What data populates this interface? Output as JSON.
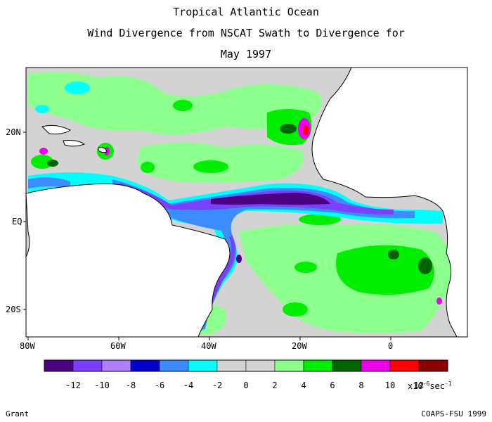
{
  "title": {
    "line1": "Tropical Atlantic Ocean",
    "line2": "Wind Divergence from NSCAT Swath to Divergence for",
    "line3": "May 1997"
  },
  "map": {
    "lon_range": [
      -80,
      15
    ],
    "lat_range": [
      -30,
      30
    ],
    "lat_labels": [
      "20N",
      "EQ",
      "20S"
    ],
    "lon_labels": [
      "80W",
      "60W",
      "40W",
      "20W",
      "0"
    ],
    "land_color": "#ffffff",
    "background_color": "#d3d3d3"
  },
  "colorbar": {
    "colors": [
      "#4b0082",
      "#7b3fff",
      "#b07fff",
      "#0000cd",
      "#3c8cff",
      "#00ffff",
      "#d3d3d3",
      "#d3d3d3",
      "#8cff8c",
      "#00ee00",
      "#006400",
      "#ee00ee",
      "#ff0000",
      "#8b0000"
    ],
    "labels": [
      "-12",
      "-10",
      "-8",
      "-6",
      "-4",
      "-2",
      "0",
      "2",
      "4",
      "6",
      "8",
      "10",
      "12"
    ],
    "unit_prefix": "x10",
    "unit_exp": "-6",
    "unit_suffix": "sec",
    "unit_suffix_exp": "-1"
  },
  "footer": {
    "left": "Grant",
    "right": "COAPS-FSU 1999"
  }
}
